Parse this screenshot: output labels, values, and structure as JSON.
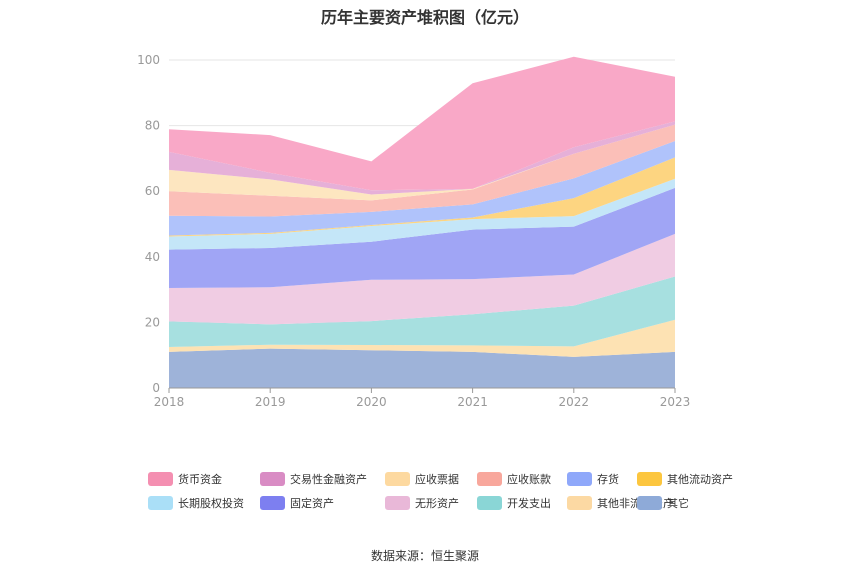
{
  "chart_data": {
    "type": "area",
    "stacked": true,
    "title": "历年主要资产堆积图（亿元）",
    "x": [
      "2018",
      "2019",
      "2020",
      "2021",
      "2022",
      "2023"
    ],
    "y_ticks": [
      "0",
      "20",
      "40",
      "60",
      "80",
      "100"
    ],
    "ylim": [
      0,
      100
    ],
    "grid": "horizontal",
    "legend_position": "bottom",
    "series": [
      {
        "name": "其它",
        "color": "#9eb3d9",
        "values": [
          11,
          12,
          11.5,
          11,
          9.5,
          11
        ]
      },
      {
        "name": "其他非流动资产",
        "color": "#fde2b3",
        "values": [
          1.5,
          1.2,
          1.6,
          2,
          3.2,
          9.8
        ]
      },
      {
        "name": "开发支出",
        "color": "#a7e0e0",
        "values": [
          7.8,
          6.2,
          7.3,
          9.5,
          12.4,
          13.2
        ]
      },
      {
        "name": "无形资产",
        "color": "#f0cce3",
        "values": [
          10.2,
          11.3,
          12.6,
          10.7,
          9.5,
          13
        ]
      },
      {
        "name": "固定资产",
        "color": "#a0a5f5",
        "values": [
          11.7,
          12,
          11.6,
          15.1,
          14.6,
          14
        ]
      },
      {
        "name": "长期股权投资",
        "color": "#c4e6f8",
        "values": [
          4,
          4.3,
          4.8,
          3.2,
          3.2,
          2.8
        ]
      },
      {
        "name": "其他流动资产",
        "color": "#fdd581",
        "values": [
          0.3,
          0.3,
          0.3,
          0.5,
          5.5,
          6.5
        ]
      },
      {
        "name": "存货",
        "color": "#b0c3fb",
        "values": [
          6,
          5,
          4,
          4,
          6,
          5
        ]
      },
      {
        "name": "应收账款",
        "color": "#fbbfb8",
        "values": [
          7.5,
          6.3,
          3.5,
          4.5,
          7.5,
          5
        ]
      },
      {
        "name": "应收票据",
        "color": "#fde6c0",
        "values": [
          6.5,
          5,
          1.8,
          0.2,
          0,
          0
        ]
      },
      {
        "name": "交易性金融资产",
        "color": "#e6b0d8",
        "values": [
          5.5,
          2,
          1.3,
          0,
          2,
          1
        ]
      },
      {
        "name": "货币资金",
        "color": "#f9a8c7",
        "values": [
          6.9,
          11.5,
          8.8,
          32.2,
          27.6,
          13.6
        ]
      }
    ],
    "legend": [
      {
        "name": "货币资金",
        "color": "#f48fb1"
      },
      {
        "name": "交易性金融资产",
        "color": "#d98cc4"
      },
      {
        "name": "应收票据",
        "color": "#fdd9a0"
      },
      {
        "name": "应收账款",
        "color": "#f8a79c"
      },
      {
        "name": "存货",
        "color": "#8fa8fa"
      },
      {
        "name": "其他流动资产",
        "color": "#fcc63f"
      },
      {
        "name": "长期股权投资",
        "color": "#aadff7"
      },
      {
        "name": "固定资产",
        "color": "#7d7ff0"
      },
      {
        "name": "无形资产",
        "color": "#e9b8d8"
      },
      {
        "name": "开发支出",
        "color": "#8ad6d6"
      },
      {
        "name": "其他非流动资产",
        "color": "#fcd9a3"
      },
      {
        "name": "其它",
        "color": "#8eaad8"
      }
    ]
  },
  "source_text": "数据来源：恒生聚源"
}
